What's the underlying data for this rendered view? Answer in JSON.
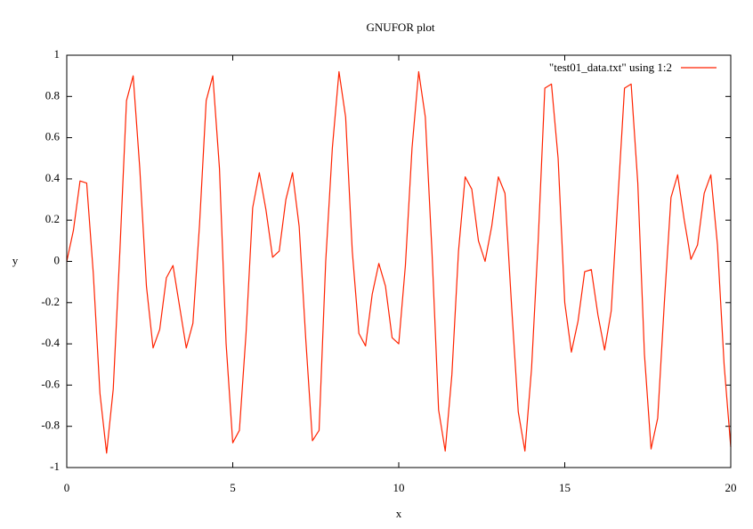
{
  "chart_data": {
    "type": "line",
    "title": "GNUFOR plot",
    "xlabel": "x",
    "ylabel": "y",
    "xlim": [
      0,
      20
    ],
    "ylim": [
      -1,
      1
    ],
    "x_ticks": [
      0,
      5,
      10,
      15,
      20
    ],
    "x_tick_labels": [
      "0",
      "5",
      "10",
      "15",
      "20"
    ],
    "y_ticks": [
      -1,
      -0.8,
      -0.6,
      -0.4,
      -0.2,
      0,
      0.2,
      0.4,
      0.6,
      0.8,
      1
    ],
    "y_tick_labels": [
      "-1",
      "-0.8",
      "-0.6",
      "-0.4",
      "-0.2",
      "0",
      "0.2",
      "0.4",
      "0.6",
      "0.8",
      "1"
    ],
    "grid": false,
    "legend_position": "top-right",
    "series": [
      {
        "name": "\"test01_data.txt\" using 1:2",
        "color": "#ff2200",
        "x": [
          0,
          0.2,
          0.4,
          0.6,
          0.8,
          1.0,
          1.2,
          1.4,
          1.6,
          1.8,
          2.0,
          2.2,
          2.4,
          2.6,
          2.8,
          3.0,
          3.2,
          3.4,
          3.6,
          3.8,
          4.0,
          4.2,
          4.4,
          4.6,
          4.8,
          5.0,
          5.2,
          5.4,
          5.6,
          5.8,
          6.0,
          6.2,
          6.4,
          6.6,
          6.8,
          7.0,
          7.2,
          7.4,
          7.6,
          7.8,
          8.0,
          8.2,
          8.4,
          8.6,
          8.8,
          9.0,
          9.2,
          9.4,
          9.6,
          9.8,
          10.0,
          10.2,
          10.4,
          10.6,
          10.8,
          11.0,
          11.2,
          11.4,
          11.6,
          11.8,
          12.0,
          12.2,
          12.4,
          12.6,
          12.8,
          13.0,
          13.2,
          13.4,
          13.6,
          13.8,
          14.0,
          14.2,
          14.4,
          14.6,
          14.8,
          15.0,
          15.2,
          15.4,
          15.6,
          15.8,
          16.0,
          16.2,
          16.4,
          16.6,
          16.8,
          17.0,
          17.2,
          17.4,
          17.6,
          17.8,
          18.0,
          18.2,
          18.4,
          18.6,
          18.8,
          19.0,
          19.2,
          19.4,
          19.6,
          19.8,
          20.0
        ],
        "y": [
          0.0,
          0.15,
          0.39,
          0.38,
          -0.06,
          -0.64,
          -0.93,
          -0.62,
          0.05,
          0.78,
          0.9,
          0.45,
          -0.12,
          -0.42,
          -0.33,
          -0.08,
          -0.02,
          -0.22,
          -0.42,
          -0.3,
          0.18,
          0.78,
          0.9,
          0.45,
          -0.4,
          -0.88,
          -0.82,
          -0.35,
          0.26,
          0.43,
          0.25,
          0.02,
          0.05,
          0.3,
          0.43,
          0.17,
          -0.38,
          -0.87,
          -0.82,
          0.0,
          0.55,
          0.92,
          0.7,
          0.05,
          -0.35,
          -0.41,
          -0.16,
          -0.01,
          -0.12,
          -0.37,
          -0.4,
          -0.02,
          0.55,
          0.92,
          0.7,
          0.05,
          -0.72,
          -0.92,
          -0.55,
          0.05,
          0.41,
          0.35,
          0.1,
          0.0,
          0.17,
          0.41,
          0.33,
          -0.22,
          -0.73,
          -0.92,
          -0.52,
          0.1,
          0.84,
          0.86,
          0.5,
          -0.2,
          -0.44,
          -0.29,
          -0.05,
          -0.04,
          -0.26,
          -0.43,
          -0.24,
          0.3,
          0.84,
          0.86,
          0.38,
          -0.45,
          -0.91,
          -0.76,
          -0.2,
          0.31,
          0.42,
          0.2,
          0.01,
          0.08,
          0.33,
          0.42,
          0.08,
          -0.5,
          -0.9
        ]
      }
    ]
  }
}
